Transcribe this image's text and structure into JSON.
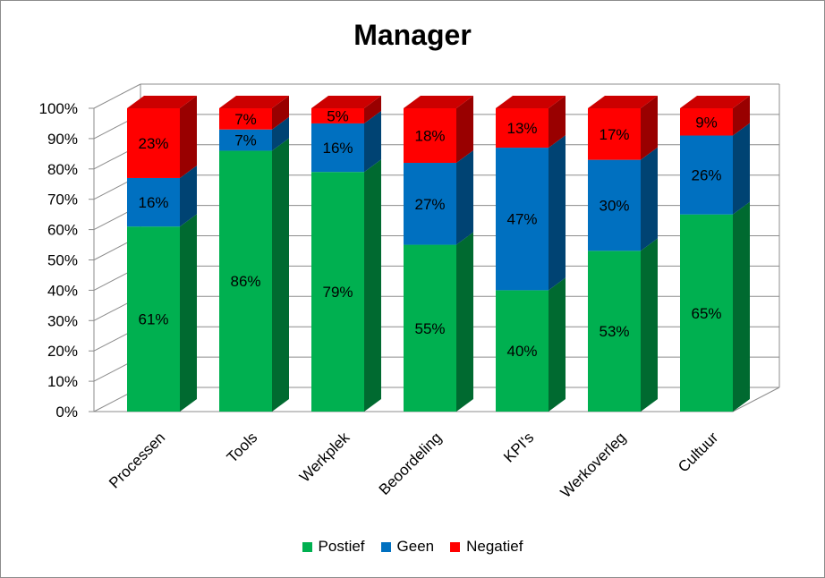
{
  "chart_data": {
    "type": "bar",
    "stacked": true,
    "three_d": true,
    "title": "Manager",
    "categories": [
      "Processen",
      "Tools",
      "Werkplek",
      "Beoordeling",
      "KPI's",
      "Werkoverleg",
      "Cultuur"
    ],
    "series": [
      {
        "name": "Postief",
        "color": "#00b050",
        "values": [
          61,
          86,
          79,
          55,
          40,
          53,
          65
        ]
      },
      {
        "name": "Geen",
        "color": "#0070c0",
        "values": [
          16,
          7,
          16,
          27,
          47,
          30,
          26
        ]
      },
      {
        "name": "Negatief",
        "color": "#ff0000",
        "values": [
          23,
          7,
          5,
          18,
          13,
          17,
          9
        ]
      }
    ],
    "value_unit": "%",
    "ylim": [
      0,
      100
    ],
    "y_ticks": [
      "0%",
      "10%",
      "20%",
      "30%",
      "40%",
      "50%",
      "60%",
      "70%",
      "80%",
      "90%",
      "100%"
    ],
    "grid": true,
    "legend_position": "bottom"
  }
}
